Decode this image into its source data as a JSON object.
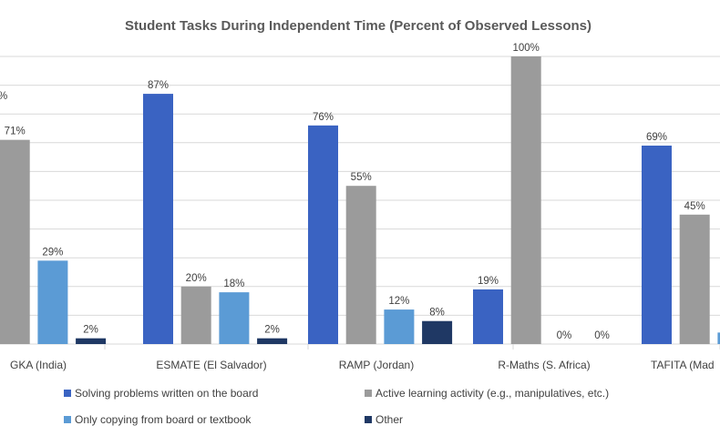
{
  "chart_data": {
    "type": "bar",
    "title": "Student Tasks During Independent Time (Percent of Observed Lessons)",
    "xlabel": "",
    "ylabel": "",
    "ylim": [
      0,
      100
    ],
    "grid": true,
    "legend_position": "bottom",
    "categories": [
      "GKA (India)",
      "ESMATE (El Salvador)",
      "RAMP (Jordan)",
      "R-Maths (S. Africa)",
      "TAFITA (Mad"
    ],
    "series": [
      {
        "name": "Solving problems written on the board",
        "color": "#3a63c2",
        "values": [
          null,
          87,
          76,
          19,
          69
        ],
        "labels": [
          "%",
          "87%",
          "76%",
          "19%",
          "69%"
        ]
      },
      {
        "name": "Active learning activity (e.g., manipulatives, etc.)",
        "color": "#9b9b9b",
        "values": [
          71,
          20,
          55,
          100,
          45
        ],
        "labels": [
          "71%",
          "20%",
          "55%",
          "100%",
          "45%"
        ]
      },
      {
        "name": "Only copying from board or textbook",
        "color": "#5b9bd5",
        "values": [
          29,
          18,
          12,
          0,
          null
        ],
        "labels": [
          "29%",
          "18%",
          "12%",
          "0%",
          ""
        ]
      },
      {
        "name": "Other",
        "color": "#1f3864",
        "values": [
          2,
          2,
          8,
          0,
          null
        ],
        "labels": [
          "2%",
          "2%",
          "8%",
          "0%",
          ""
        ]
      }
    ],
    "hidden_values": [
      [
        0,
        80
      ],
      [
        4,
        4
      ]
    ]
  }
}
